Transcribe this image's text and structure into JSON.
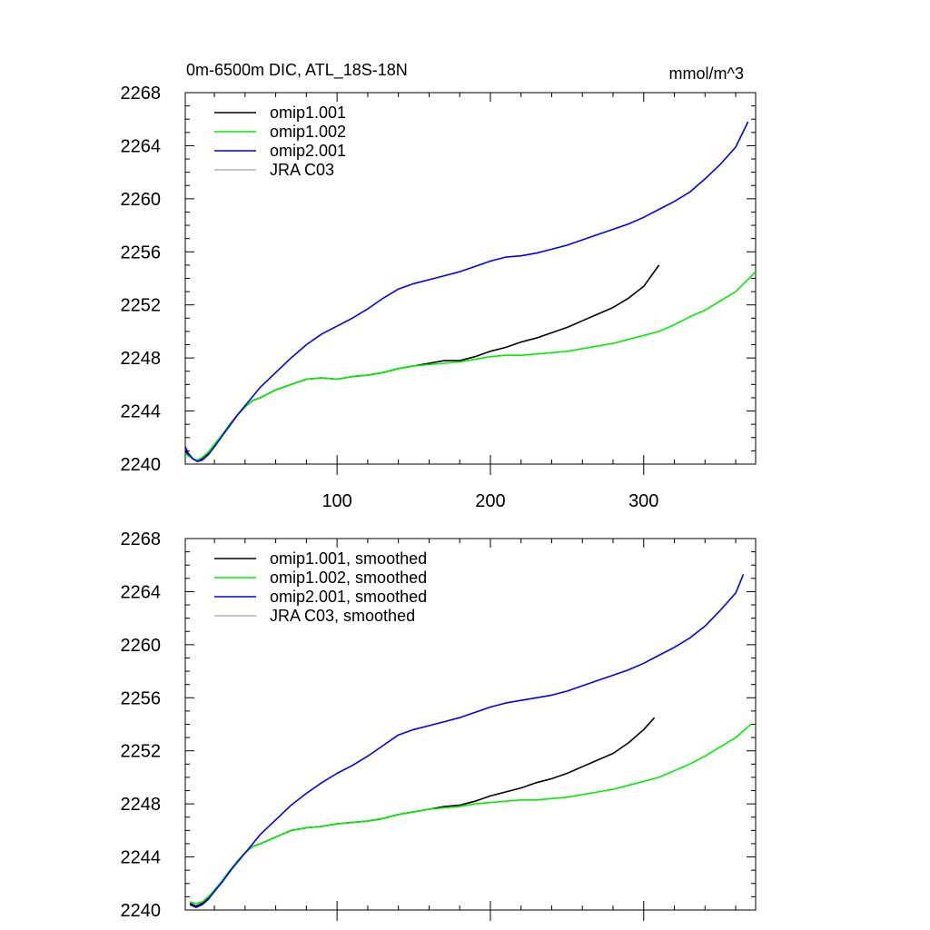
{
  "figure": {
    "title": "0m-6500m DIC, ATL_18S-18N",
    "units": "mmol/m^3"
  },
  "chart_data": [
    {
      "type": "line",
      "title": "0m-6500m DIC, ATL_18S-18N",
      "units": "mmol/m^3",
      "xlabel": "",
      "ylabel": "",
      "xlim": [
        1,
        373
      ],
      "ylim": [
        2240,
        2268
      ],
      "xticks": [
        100,
        200,
        300
      ],
      "xtick_labels": [
        "100",
        "200",
        "300"
      ],
      "yticks": [
        2240,
        2244,
        2248,
        2252,
        2256,
        2260,
        2264,
        2268
      ],
      "ytick_labels": [
        "2240",
        "2244",
        "2248",
        "2252",
        "2256",
        "2260",
        "2264",
        "2268"
      ],
      "legend": "top-left",
      "grid": false,
      "series": [
        {
          "name": "omip1.001",
          "color": "#000000",
          "x": [
            1,
            3,
            6,
            9,
            12,
            16,
            20,
            25,
            30,
            35,
            40,
            45,
            50,
            60,
            70,
            80,
            90,
            100,
            110,
            120,
            130,
            140,
            150,
            160,
            170,
            180,
            190,
            200,
            210,
            220,
            230,
            240,
            250,
            260,
            270,
            280,
            290,
            300,
            310
          ],
          "y": [
            2241.0,
            2240.7,
            2240.4,
            2240.2,
            2240.4,
            2240.8,
            2241.4,
            2242.2,
            2243.0,
            2243.7,
            2244.3,
            2244.8,
            2245.0,
            2245.6,
            2246.0,
            2246.4,
            2246.5,
            2246.4,
            2246.6,
            2246.7,
            2246.9,
            2247.2,
            2247.4,
            2247.6,
            2247.8,
            2247.8,
            2248.1,
            2248.5,
            2248.8,
            2249.2,
            2249.5,
            2249.9,
            2250.3,
            2250.8,
            2251.3,
            2251.8,
            2252.5,
            2253.4,
            2255.0
          ]
        },
        {
          "name": "omip1.002",
          "color": "#00ee00",
          "x": [
            1,
            3,
            6,
            9,
            12,
            16,
            20,
            25,
            30,
            35,
            40,
            45,
            50,
            60,
            70,
            80,
            90,
            100,
            110,
            120,
            130,
            140,
            150,
            160,
            170,
            180,
            190,
            200,
            210,
            220,
            230,
            240,
            250,
            260,
            270,
            280,
            290,
            300,
            310,
            320,
            330,
            340,
            350,
            360,
            373
          ],
          "y": [
            2240.8,
            2240.6,
            2240.4,
            2240.3,
            2240.5,
            2240.9,
            2241.5,
            2242.2,
            2243.0,
            2243.7,
            2244.3,
            2244.8,
            2245.0,
            2245.6,
            2246.0,
            2246.4,
            2246.5,
            2246.4,
            2246.6,
            2246.7,
            2246.9,
            2247.2,
            2247.4,
            2247.5,
            2247.6,
            2247.7,
            2247.9,
            2248.1,
            2248.2,
            2248.2,
            2248.3,
            2248.4,
            2248.5,
            2248.7,
            2248.9,
            2249.1,
            2249.4,
            2249.7,
            2250.0,
            2250.5,
            2251.1,
            2251.6,
            2252.3,
            2253.0,
            2254.5
          ]
        },
        {
          "name": "omip2.001",
          "color": "#0000ee",
          "x": [
            1,
            3,
            6,
            9,
            12,
            16,
            20,
            25,
            30,
            35,
            40,
            45,
            50,
            60,
            70,
            80,
            90,
            100,
            110,
            120,
            130,
            140,
            150,
            160,
            170,
            180,
            190,
            200,
            210,
            220,
            230,
            240,
            250,
            260,
            270,
            280,
            290,
            300,
            310,
            320,
            330,
            340,
            350,
            360,
            368
          ],
          "y": [
            2241.3,
            2240.8,
            2240.4,
            2240.2,
            2240.3,
            2240.7,
            2241.3,
            2242.1,
            2242.9,
            2243.7,
            2244.4,
            2245.1,
            2245.8,
            2246.9,
            2248.0,
            2249.0,
            2249.8,
            2250.4,
            2251.0,
            2251.7,
            2252.5,
            2253.2,
            2253.6,
            2253.9,
            2254.2,
            2254.5,
            2254.9,
            2255.3,
            2255.6,
            2255.7,
            2255.9,
            2256.2,
            2256.5,
            2256.9,
            2257.3,
            2257.7,
            2258.1,
            2258.6,
            2259.2,
            2259.8,
            2260.5,
            2261.5,
            2262.6,
            2263.9,
            2265.8
          ]
        },
        {
          "name": "JRA C03",
          "color": "#b4b4b4",
          "x": [],
          "y": []
        }
      ]
    },
    {
      "type": "line",
      "title": "",
      "xlabel": "",
      "ylabel": "",
      "xlim": [
        1,
        373
      ],
      "ylim": [
        2240,
        2268
      ],
      "xticks": [
        100,
        200,
        300
      ],
      "xtick_labels": [],
      "yticks": [
        2240,
        2244,
        2248,
        2252,
        2256,
        2260,
        2264,
        2268
      ],
      "ytick_labels": [
        "2240",
        "2244",
        "2248",
        "2252",
        "2256",
        "2260",
        "2264",
        "2268"
      ],
      "legend": "top-left",
      "grid": false,
      "series": [
        {
          "name": "omip1.001, smoothed",
          "color": "#000000",
          "x": [
            4,
            8,
            12,
            16,
            20,
            25,
            30,
            35,
            40,
            45,
            50,
            60,
            70,
            80,
            90,
            100,
            110,
            120,
            130,
            140,
            150,
            160,
            170,
            180,
            190,
            200,
            210,
            220,
            230,
            240,
            250,
            260,
            270,
            280,
            290,
            300,
            307
          ],
          "y": [
            2240.5,
            2240.3,
            2240.5,
            2240.9,
            2241.4,
            2242.1,
            2242.9,
            2243.7,
            2244.3,
            2244.8,
            2245.0,
            2245.5,
            2246.0,
            2246.2,
            2246.3,
            2246.5,
            2246.6,
            2246.7,
            2246.9,
            2247.2,
            2247.4,
            2247.6,
            2247.8,
            2247.9,
            2248.2,
            2248.6,
            2248.9,
            2249.2,
            2249.6,
            2249.9,
            2250.3,
            2250.8,
            2251.3,
            2251.8,
            2252.6,
            2253.6,
            2254.5
          ]
        },
        {
          "name": "omip1.002, smoothed",
          "color": "#00ee00",
          "x": [
            4,
            8,
            12,
            16,
            20,
            25,
            30,
            35,
            40,
            45,
            50,
            60,
            70,
            80,
            90,
            100,
            110,
            120,
            130,
            140,
            150,
            160,
            170,
            180,
            190,
            200,
            210,
            220,
            230,
            240,
            250,
            260,
            270,
            280,
            290,
            300,
            310,
            320,
            330,
            340,
            350,
            360,
            370
          ],
          "y": [
            2240.6,
            2240.5,
            2240.6,
            2241.0,
            2241.5,
            2242.2,
            2243.0,
            2243.7,
            2244.3,
            2244.8,
            2245.0,
            2245.5,
            2246.0,
            2246.2,
            2246.3,
            2246.5,
            2246.6,
            2246.7,
            2246.9,
            2247.2,
            2247.4,
            2247.6,
            2247.7,
            2247.8,
            2248.0,
            2248.1,
            2248.2,
            2248.3,
            2248.3,
            2248.4,
            2248.5,
            2248.7,
            2248.9,
            2249.1,
            2249.4,
            2249.7,
            2250.0,
            2250.5,
            2251.0,
            2251.6,
            2252.3,
            2253.0,
            2254.0
          ]
        },
        {
          "name": "omip2.001, smoothed",
          "color": "#0000ee",
          "x": [
            4,
            8,
            12,
            16,
            20,
            25,
            30,
            35,
            40,
            45,
            50,
            60,
            70,
            80,
            90,
            100,
            110,
            120,
            130,
            140,
            150,
            160,
            170,
            180,
            190,
            200,
            210,
            220,
            230,
            240,
            250,
            260,
            270,
            280,
            290,
            300,
            310,
            320,
            330,
            340,
            350,
            360,
            365
          ],
          "y": [
            2240.4,
            2240.2,
            2240.4,
            2240.8,
            2241.4,
            2242.1,
            2242.9,
            2243.6,
            2244.3,
            2245.0,
            2245.7,
            2246.8,
            2247.9,
            2248.8,
            2249.6,
            2250.3,
            2250.9,
            2251.6,
            2252.4,
            2253.2,
            2253.6,
            2253.9,
            2254.2,
            2254.5,
            2254.9,
            2255.3,
            2255.6,
            2255.8,
            2256.0,
            2256.2,
            2256.5,
            2256.9,
            2257.3,
            2257.7,
            2258.1,
            2258.6,
            2259.2,
            2259.8,
            2260.5,
            2261.4,
            2262.6,
            2263.9,
            2265.3
          ]
        },
        {
          "name": "JRA C03, smoothed",
          "color": "#b4b4b4",
          "x": [],
          "y": []
        }
      ]
    }
  ]
}
